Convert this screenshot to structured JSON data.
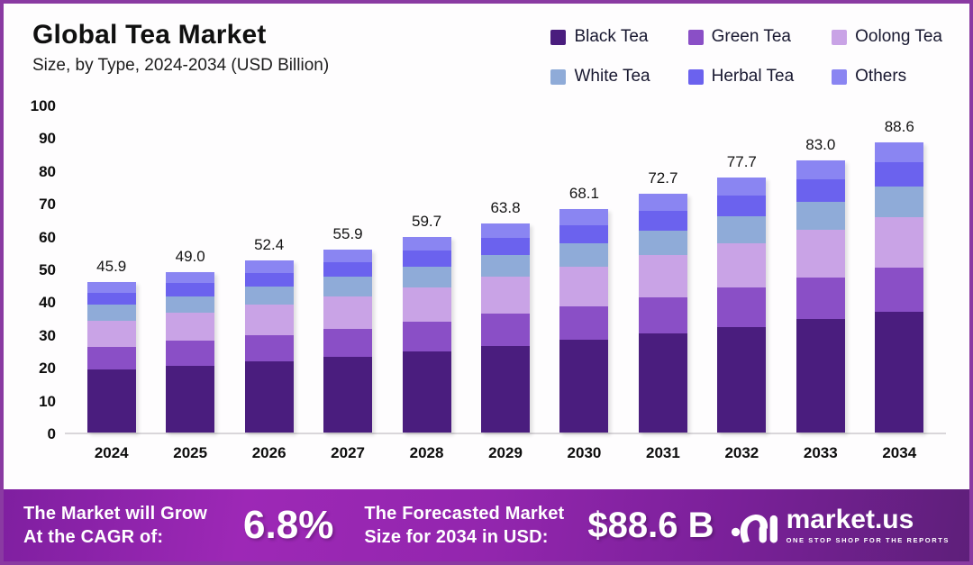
{
  "header": {
    "title": "Global Tea Market",
    "subtitle": "Size, by Type, 2024-2034 (USD Billion)"
  },
  "chart_data": {
    "type": "bar",
    "stacked": true,
    "title": "Global Tea Market Size, by Type, 2024-2034 (USD Billion)",
    "categories": [
      "2024",
      "2025",
      "2026",
      "2027",
      "2028",
      "2029",
      "2030",
      "2031",
      "2032",
      "2033",
      "2034"
    ],
    "totals": [
      "45.9",
      "49.0",
      "52.4",
      "55.9",
      "59.7",
      "63.8",
      "68.1",
      "72.7",
      "77.7",
      "83.0",
      "88.6"
    ],
    "series": [
      {
        "name": "Black Tea",
        "color": "#4a1d7e",
        "values": [
          19.1,
          20.4,
          21.7,
          23.1,
          24.8,
          26.4,
          28.2,
          30.2,
          32.2,
          34.5,
          36.7
        ]
      },
      {
        "name": "Green Tea",
        "color": "#8a4fc6",
        "values": [
          7.0,
          7.5,
          8.0,
          8.6,
          9.1,
          9.8,
          10.4,
          11.1,
          11.9,
          12.7,
          13.6
        ]
      },
      {
        "name": "Oolong Tea",
        "color": "#c9a3e6",
        "values": [
          8.0,
          8.6,
          9.2,
          9.8,
          10.4,
          11.2,
          11.9,
          12.7,
          13.6,
          14.5,
          15.5
        ]
      },
      {
        "name": "White Tea",
        "color": "#8fabd8",
        "values": [
          4.8,
          5.1,
          5.5,
          5.9,
          6.3,
          6.7,
          7.2,
          7.6,
          8.2,
          8.7,
          9.3
        ]
      },
      {
        "name": "Herbal Tea",
        "color": "#6b62ee",
        "values": [
          3.8,
          4.0,
          4.3,
          4.6,
          4.9,
          5.2,
          5.6,
          6.0,
          6.4,
          6.8,
          7.3
        ]
      },
      {
        "name": "Others",
        "color": "#8a85f2",
        "values": [
          3.2,
          3.4,
          3.7,
          3.9,
          4.2,
          4.5,
          4.8,
          5.1,
          5.4,
          5.8,
          6.2
        ]
      }
    ],
    "xlabel": "",
    "ylabel": "",
    "ylim": [
      0,
      100
    ],
    "ytick_step": 10,
    "grid": false,
    "legend_position": "top-right"
  },
  "banner": {
    "cagr": {
      "label_line1": "The Market will Grow",
      "label_line2": "At the CAGR of:",
      "value": "6.8%"
    },
    "forecast": {
      "label_line1": "The Forecasted Market",
      "label_line2": "Size for 2034 in USD:",
      "value": "$88.6 B"
    },
    "brand": {
      "name": "market.us",
      "tagline": "ONE STOP SHOP FOR THE REPORTS"
    }
  },
  "colors": {
    "frame_border": "#8a3aa2",
    "banner_purple_light": "#9d28b6",
    "banner_purple_dark": "#5e1f7a",
    "axis_text": "#0d0d0d"
  }
}
